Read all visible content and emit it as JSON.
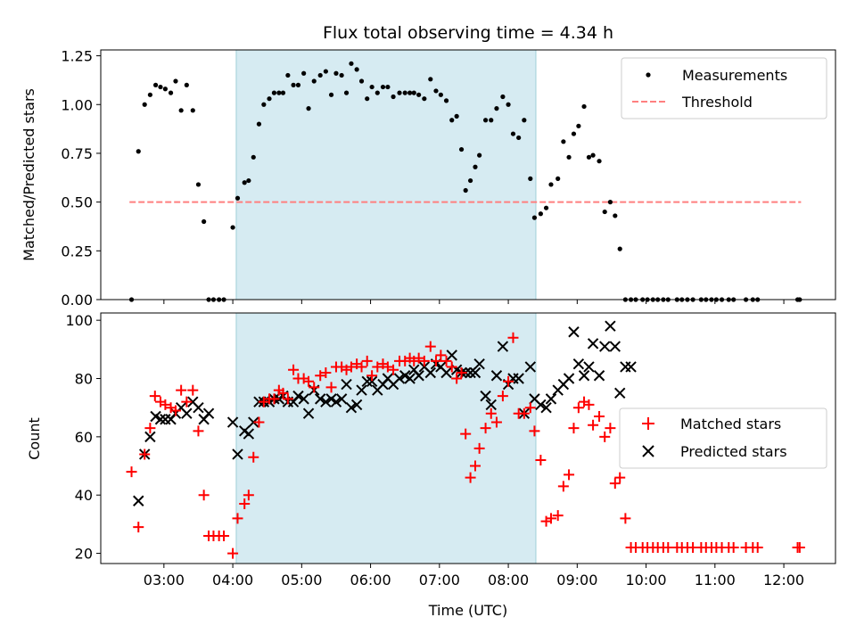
{
  "title": "Flux total observing time = 4.34 h",
  "xlabel": "Time (UTC)",
  "chart_data": [
    {
      "type": "scatter",
      "ylabel": "Matched/Predicted stars",
      "xlim": [
        2.083,
        12.75
      ],
      "ylim": [
        0,
        1.28
      ],
      "yticks": [
        0.0,
        0.25,
        0.5,
        0.75,
        1.0,
        1.25
      ],
      "ytick_labels": [
        "0.00",
        "0.25",
        "0.50",
        "0.75",
        "1.00",
        "1.25"
      ],
      "legend_position": "top-right",
      "shaded_interval": [
        4.05,
        8.4
      ],
      "threshold": {
        "name": "Threshold",
        "value": 0.5,
        "x_range": [
          2.5,
          12.25
        ],
        "color": "#ff7f7f"
      },
      "series": [
        {
          "name": "Measurements",
          "color": "#000000",
          "marker": "dot",
          "x": [
            2.53,
            2.63,
            2.72,
            2.8,
            2.88,
            2.95,
            3.02,
            3.1,
            3.17,
            3.25,
            3.33,
            3.42,
            3.5,
            3.58,
            3.65,
            3.72,
            3.8,
            3.87,
            4.0,
            4.07,
            4.17,
            4.23,
            4.3,
            4.38,
            4.45,
            4.53,
            4.6,
            4.67,
            4.73,
            4.8,
            4.88,
            4.95,
            5.03,
            5.1,
            5.18,
            5.27,
            5.35,
            5.43,
            5.5,
            5.58,
            5.65,
            5.72,
            5.8,
            5.87,
            5.95,
            6.02,
            6.1,
            6.18,
            6.25,
            6.33,
            6.42,
            6.5,
            6.57,
            6.63,
            6.7,
            6.78,
            6.87,
            6.95,
            7.02,
            7.1,
            7.18,
            7.25,
            7.32,
            7.38,
            7.45,
            7.52,
            7.58,
            7.67,
            7.75,
            7.83,
            7.92,
            8.0,
            8.07,
            8.15,
            8.23,
            8.32,
            8.38,
            8.47,
            8.55,
            8.62,
            8.72,
            8.8,
            8.88,
            8.95,
            9.02,
            9.1,
            9.17,
            9.23,
            9.32,
            9.4,
            9.48,
            9.55,
            9.62,
            9.7,
            9.78,
            9.85,
            9.95,
            10.02,
            10.1,
            10.17,
            10.25,
            10.32,
            10.45,
            10.52,
            10.6,
            10.68,
            10.8,
            10.87,
            10.95,
            11.02,
            11.1,
            11.2,
            11.27,
            11.45,
            11.55,
            11.62,
            12.2,
            12.23
          ],
          "y": [
            0.0,
            0.76,
            1.0,
            1.05,
            1.1,
            1.09,
            1.08,
            1.06,
            1.12,
            0.97,
            1.1,
            0.97,
            0.59,
            0.4,
            0.0,
            0.0,
            0.0,
            0.0,
            0.37,
            0.52,
            0.6,
            0.61,
            0.73,
            0.9,
            1.0,
            1.03,
            1.06,
            1.06,
            1.06,
            1.15,
            1.1,
            1.1,
            1.16,
            0.98,
            1.12,
            1.15,
            1.17,
            1.05,
            1.16,
            1.15,
            1.06,
            1.21,
            1.18,
            1.12,
            1.03,
            1.09,
            1.06,
            1.09,
            1.09,
            1.04,
            1.06,
            1.06,
            1.06,
            1.06,
            1.05,
            1.03,
            1.13,
            1.07,
            1.05,
            1.02,
            0.92,
            0.94,
            0.77,
            0.56,
            0.61,
            0.68,
            0.74,
            0.92,
            0.92,
            0.98,
            1.04,
            1.0,
            0.85,
            0.83,
            0.92,
            0.62,
            0.42,
            0.44,
            0.47,
            0.59,
            0.62,
            0.81,
            0.73,
            0.85,
            0.89,
            0.99,
            0.73,
            0.74,
            0.71,
            0.45,
            0.5,
            0.43,
            0.26,
            0.0,
            0.0,
            0.0,
            0.0,
            0.0,
            0.0,
            0.0,
            0.0,
            0.0,
            0.0,
            0.0,
            0.0,
            0.0,
            0.0,
            0.0,
            0.0,
            0.0,
            0.0,
            0.0,
            0.0,
            0.0,
            0.0,
            0.0,
            0.0,
            0.0
          ]
        }
      ]
    },
    {
      "type": "scatter",
      "ylabel": "Count",
      "xlim": [
        2.083,
        12.75
      ],
      "ylim": [
        16.5,
        102.5
      ],
      "yticks": [
        20,
        40,
        60,
        80,
        100
      ],
      "ytick_labels": [
        "20",
        "40",
        "60",
        "80",
        "100"
      ],
      "xticks": [
        3,
        4,
        5,
        6,
        7,
        8,
        9,
        10,
        11,
        12
      ],
      "xtick_labels": [
        "03:00",
        "04:00",
        "05:00",
        "06:00",
        "07:00",
        "08:00",
        "09:00",
        "10:00",
        "11:00",
        "12:00"
      ],
      "legend_position": "center-right",
      "shaded_interval": [
        4.05,
        8.4
      ],
      "series": [
        {
          "name": "Matched stars",
          "color": "#ff0000",
          "marker": "plus",
          "x": [
            2.53,
            2.63,
            2.72,
            2.8,
            2.87,
            2.95,
            3.02,
            3.1,
            3.17,
            3.25,
            3.33,
            3.42,
            3.5,
            3.58,
            3.65,
            3.72,
            3.8,
            3.87,
            4.0,
            4.07,
            4.17,
            4.23,
            4.3,
            4.38,
            4.45,
            4.53,
            4.6,
            4.67,
            4.73,
            4.8,
            4.88,
            4.95,
            5.03,
            5.1,
            5.18,
            5.27,
            5.35,
            5.43,
            5.5,
            5.58,
            5.65,
            5.72,
            5.8,
            5.87,
            5.95,
            6.02,
            6.1,
            6.18,
            6.25,
            6.33,
            6.42,
            6.5,
            6.57,
            6.63,
            6.7,
            6.78,
            6.87,
            6.95,
            7.02,
            7.1,
            7.18,
            7.25,
            7.32,
            7.38,
            7.45,
            7.52,
            7.58,
            7.67,
            7.75,
            7.83,
            7.92,
            8.0,
            8.07,
            8.15,
            8.23,
            8.32,
            8.38,
            8.47,
            8.55,
            8.62,
            8.72,
            8.8,
            8.88,
            8.95,
            9.02,
            9.1,
            9.17,
            9.23,
            9.32,
            9.4,
            9.48,
            9.55,
            9.62,
            9.7,
            9.78,
            9.85,
            9.95,
            10.02,
            10.1,
            10.17,
            10.25,
            10.32,
            10.45,
            10.52,
            10.6,
            10.68,
            10.8,
            10.87,
            10.95,
            11.02,
            11.1,
            11.2,
            11.27,
            11.45,
            11.55,
            11.62,
            12.2,
            12.23
          ],
          "y": [
            48,
            29,
            54,
            63,
            74,
            72,
            71,
            70,
            69,
            76,
            72,
            76,
            62,
            40,
            26,
            26,
            26,
            26,
            20,
            32,
            37,
            40,
            53,
            65,
            72,
            73,
            73,
            76,
            75,
            73,
            83,
            80,
            80,
            79,
            77,
            81,
            82,
            77,
            84,
            84,
            83,
            84,
            85,
            84,
            86,
            81,
            84,
            85,
            84,
            83,
            86,
            86,
            87,
            86,
            87,
            86,
            91,
            86,
            88,
            86,
            84,
            80,
            82,
            61,
            46,
            50,
            56,
            63,
            68,
            65,
            74,
            79,
            94,
            68,
            68,
            70,
            62,
            52,
            31,
            32,
            33,
            43,
            47,
            63,
            70,
            72,
            71,
            64,
            67,
            60,
            63,
            44,
            46,
            32,
            22,
            22,
            22,
            22,
            22,
            22,
            22,
            22,
            22,
            22,
            22,
            22,
            22,
            22,
            22,
            22,
            22,
            22,
            22,
            22,
            22,
            22,
            22,
            22
          ]
        },
        {
          "name": "Predicted stars",
          "color": "#000000",
          "marker": "x",
          "x": [
            2.63,
            2.72,
            2.8,
            2.88,
            2.95,
            3.02,
            3.1,
            3.17,
            3.25,
            3.33,
            3.42,
            3.5,
            3.58,
            3.65,
            4.0,
            4.07,
            4.17,
            4.23,
            4.3,
            4.38,
            4.45,
            4.53,
            4.6,
            4.67,
            4.73,
            4.8,
            4.88,
            4.95,
            5.03,
            5.1,
            5.18,
            5.27,
            5.35,
            5.43,
            5.5,
            5.58,
            5.65,
            5.72,
            5.8,
            5.87,
            5.95,
            6.02,
            6.1,
            6.18,
            6.25,
            6.33,
            6.42,
            6.5,
            6.57,
            6.63,
            6.7,
            6.78,
            6.87,
            6.95,
            7.02,
            7.1,
            7.18,
            7.25,
            7.32,
            7.38,
            7.45,
            7.52,
            7.58,
            7.67,
            7.75,
            7.83,
            7.92,
            8.0,
            8.07,
            8.15,
            8.23,
            8.32,
            8.38,
            8.47,
            8.55,
            8.62,
            8.72,
            8.8,
            8.88,
            8.95,
            9.02,
            9.1,
            9.17,
            9.23,
            9.32,
            9.4,
            9.48,
            9.55,
            9.62,
            9.7,
            9.78
          ],
          "y": [
            38,
            54,
            60,
            67,
            66,
            66,
            66,
            68,
            70,
            68,
            72,
            70,
            66,
            68,
            65,
            54,
            62,
            61,
            65,
            72,
            72,
            72,
            73,
            73,
            74,
            72,
            72,
            74,
            73,
            68,
            76,
            73,
            72,
            73,
            72,
            73,
            78,
            70,
            71,
            76,
            79,
            79,
            76,
            78,
            80,
            78,
            80,
            81,
            80,
            83,
            81,
            84,
            82,
            85,
            84,
            82,
            88,
            83,
            82,
            82,
            82,
            82,
            85,
            74,
            71,
            81,
            91,
            78,
            80,
            80,
            68,
            84,
            73,
            71,
            70,
            73,
            76,
            78,
            80,
            96,
            85,
            81,
            84,
            92,
            81,
            91,
            98,
            91,
            75,
            84,
            84
          ]
        }
      ]
    }
  ]
}
